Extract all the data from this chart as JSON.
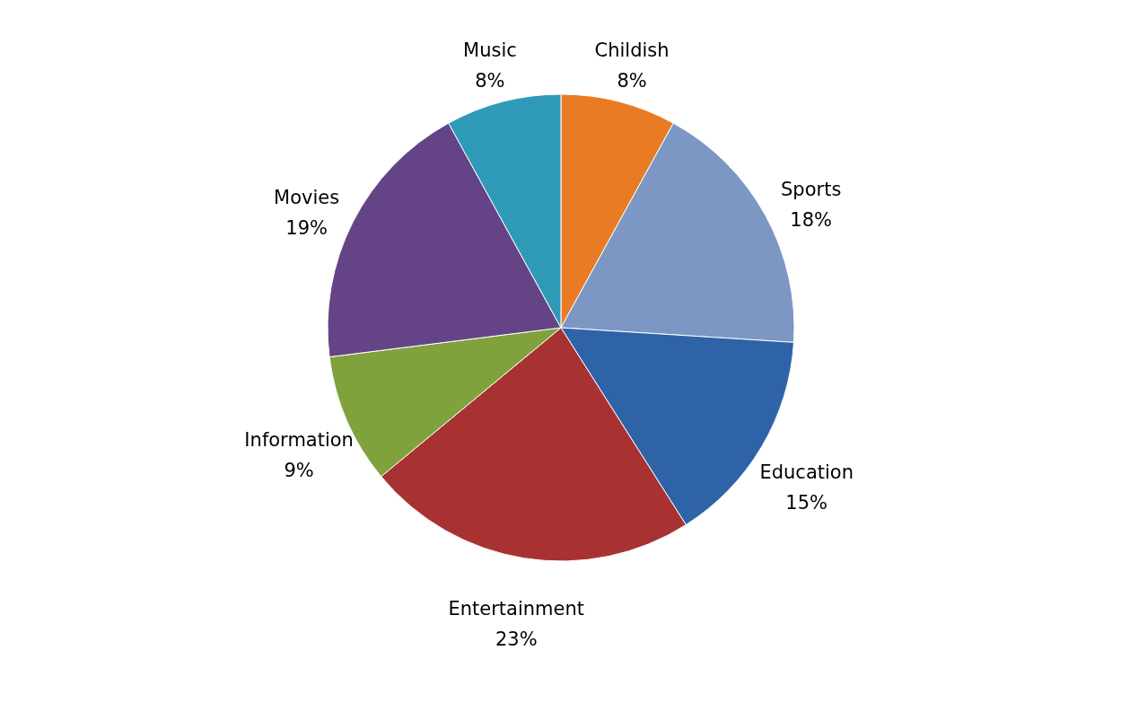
{
  "chart_data": {
    "type": "pie",
    "categories": [
      "Childish",
      "Sports",
      "Education",
      "Entertainment",
      "Information",
      "Movies",
      "Music"
    ],
    "values": [
      8,
      18,
      15,
      23,
      9,
      19,
      8
    ],
    "value_labels": [
      "8%",
      "18%",
      "15%",
      "23%",
      "9%",
      "19%",
      "8%"
    ],
    "colors": [
      "#e87b24",
      "#7d97c4",
      "#2f63a8",
      "#a83232",
      "#7fa23c",
      "#644486",
      "#2f9ab8"
    ],
    "legend": false
  }
}
